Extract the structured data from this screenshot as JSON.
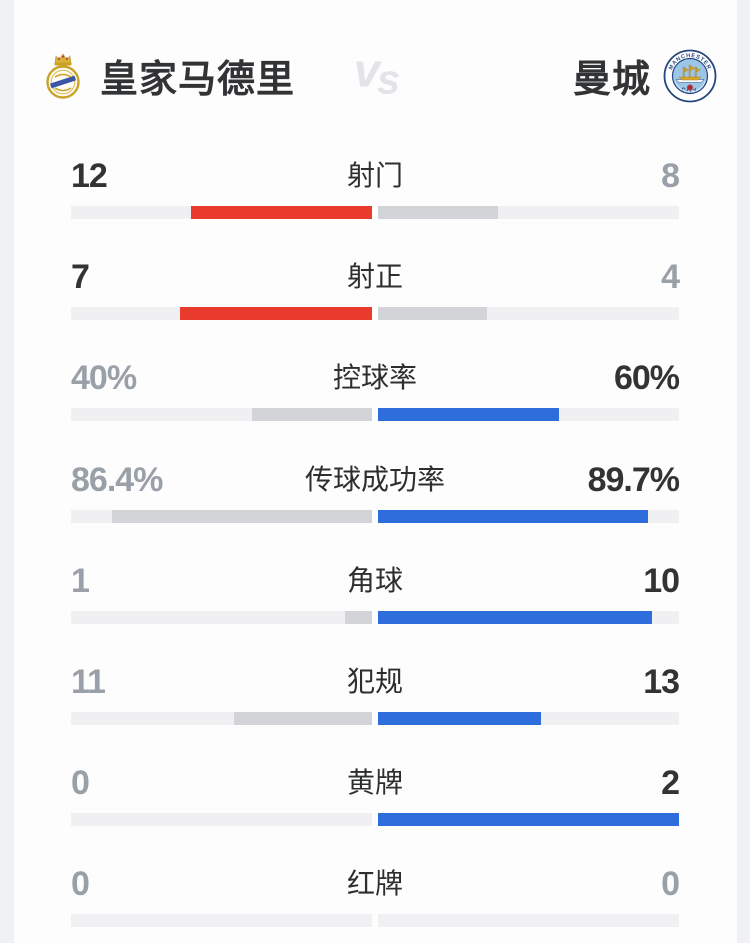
{
  "header": {
    "home": {
      "name": "皇家马德里",
      "logo": "real-madrid-crest"
    },
    "away": {
      "name": "曼城",
      "logo": "manchester-city-badge"
    },
    "vs_label": "vs"
  },
  "colors": {
    "home_bar": "#e93b2d",
    "away_bar": "#2d6edc",
    "loser_bar": "#d2d4d7",
    "track": "#f0f0f3",
    "value_strong": "#333333",
    "value_muted": "#9aa0a8",
    "label_text": "#2d2e30"
  },
  "stats": [
    {
      "label": "射门",
      "home": {
        "display": "12",
        "value": 12
      },
      "away": {
        "display": "8",
        "value": 8
      },
      "unit": "count"
    },
    {
      "label": "射正",
      "home": {
        "display": "7",
        "value": 7
      },
      "away": {
        "display": "4",
        "value": 4
      },
      "unit": "count"
    },
    {
      "label": "控球率",
      "home": {
        "display": "40%",
        "value": 40
      },
      "away": {
        "display": "60%",
        "value": 60
      },
      "unit": "%"
    },
    {
      "label": "传球成功率",
      "home": {
        "display": "86.4%",
        "value": 86.4
      },
      "away": {
        "display": "89.7%",
        "value": 89.7
      },
      "unit": "%"
    },
    {
      "label": "角球",
      "home": {
        "display": "1",
        "value": 1
      },
      "away": {
        "display": "10",
        "value": 10
      },
      "unit": "count"
    },
    {
      "label": "犯规",
      "home": {
        "display": "11",
        "value": 11
      },
      "away": {
        "display": "13",
        "value": 13
      },
      "unit": "count"
    },
    {
      "label": "黄牌",
      "home": {
        "display": "0",
        "value": 0
      },
      "away": {
        "display": "2",
        "value": 2
      },
      "unit": "count"
    },
    {
      "label": "红牌",
      "home": {
        "display": "0",
        "value": 0
      },
      "away": {
        "display": "0",
        "value": 0
      },
      "unit": "count"
    }
  ],
  "chart_data": {
    "type": "bar",
    "orientation": "horizontal-diverging",
    "title": "皇家马德里 vs 曼城",
    "categories": [
      "射门",
      "射正",
      "控球率",
      "传球成功率",
      "角球",
      "犯规",
      "黄牌",
      "红牌"
    ],
    "series": [
      {
        "name": "皇家马德里",
        "values": [
          12,
          7,
          40,
          86.4,
          1,
          11,
          0,
          0
        ]
      },
      {
        "name": "曼城",
        "values": [
          8,
          4,
          60,
          89.7,
          10,
          13,
          2,
          0
        ]
      }
    ],
    "units": [
      "count",
      "count",
      "%",
      "%",
      "count",
      "count",
      "count",
      "count"
    ],
    "legend_position": "top",
    "notes": "每行左右条从中线向外延伸；占比 = 该方数值/双方合计（百分比项按百分值），较高一方高亮（左红/右蓝），较低一方灰色"
  }
}
